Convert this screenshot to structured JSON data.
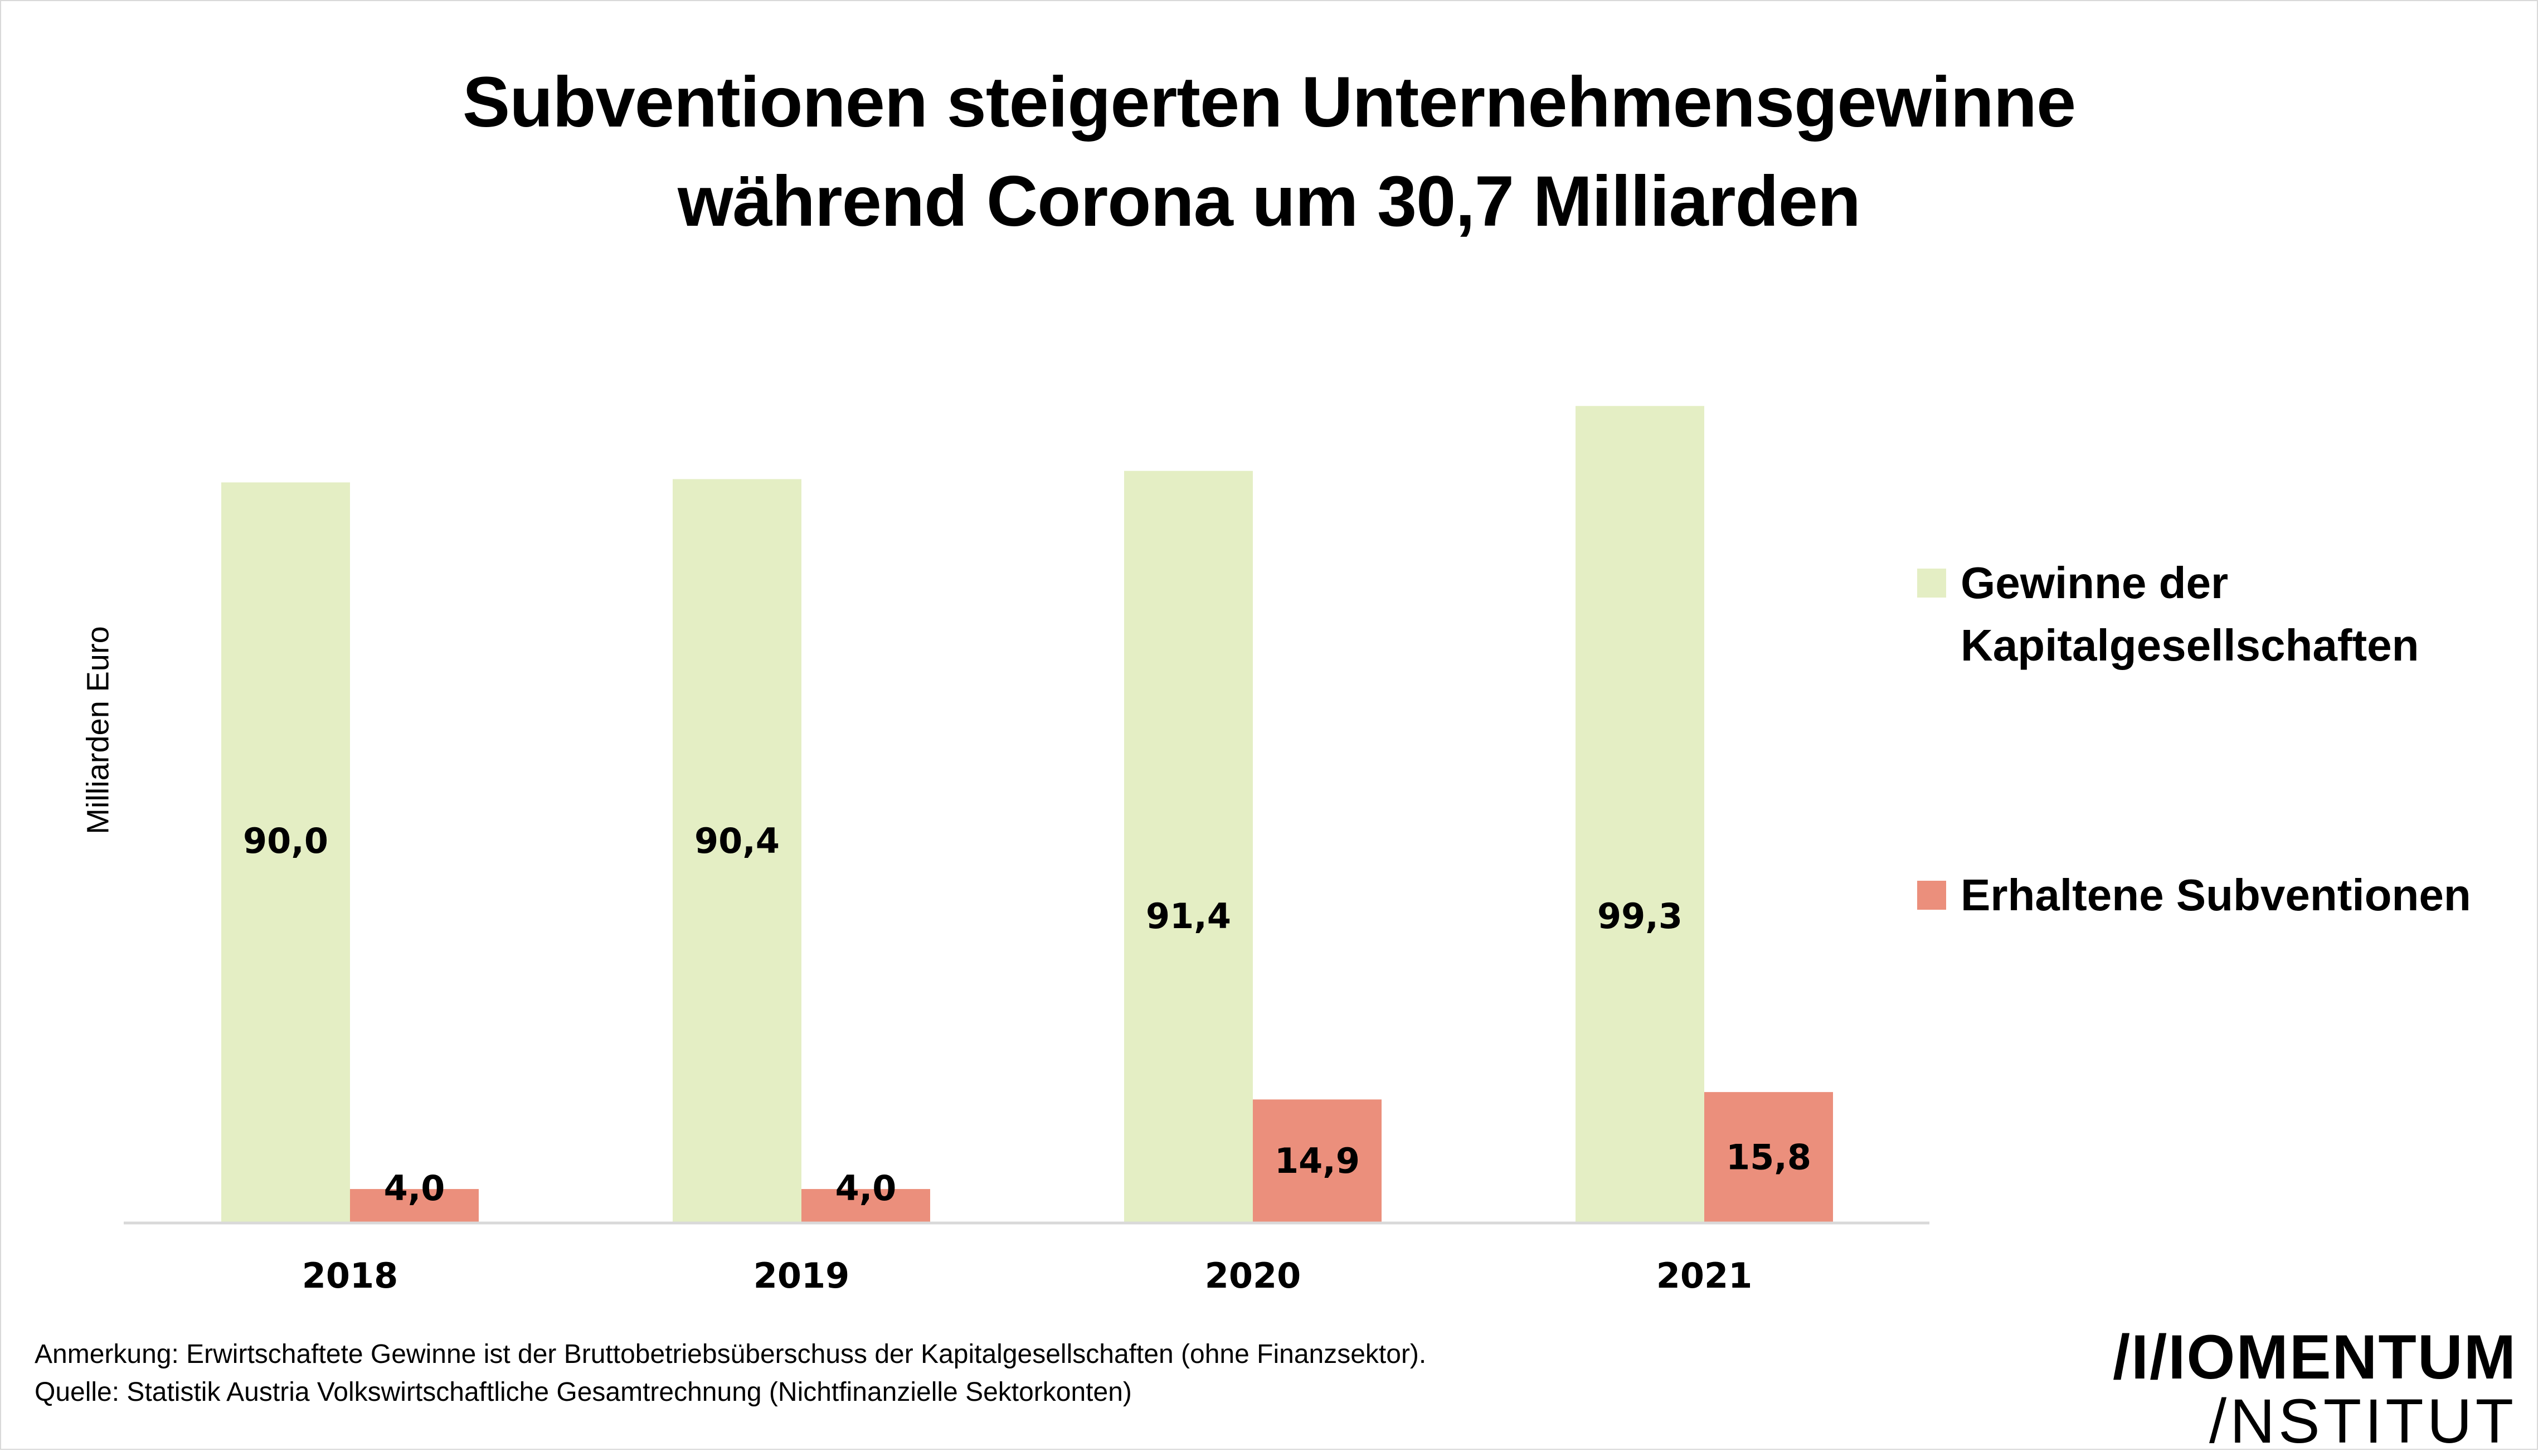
{
  "chart_data": {
    "type": "bar",
    "title": "Subventionen steigerten Unternehmensgewinne während Corona um 30,7 Milliarden",
    "title_lines": [
      "Subventionen steigerten Unternehmensgewinne",
      "während Corona um 30,7 Milliarden"
    ],
    "xlabel": "",
    "ylabel": "Milliarden Euro",
    "categories": [
      "2018",
      "2019",
      "2020",
      "2021"
    ],
    "series": [
      {
        "name": "Gewinne der Kapitalgesellschaften",
        "legend_lines": [
          "Gewinne der",
          "Kapitalgesellschaften"
        ],
        "color": "#e4eec4",
        "values": [
          90.0,
          90.4,
          91.4,
          99.3
        ],
        "labels": [
          "90,0",
          "90,4",
          "91,4",
          "99,3"
        ]
      },
      {
        "name": "Erhaltene Subventionen",
        "legend_lines": [
          "Erhaltene Subventionen"
        ],
        "color": "#eb8f7c",
        "values": [
          4.0,
          4.0,
          14.9,
          15.8
        ],
        "labels": [
          "4,0",
          "4,0",
          "14,9",
          "15,8"
        ]
      }
    ],
    "ylim": [
      0,
      110
    ],
    "grid": false,
    "y_ticks_shown": false,
    "legend_position": "right",
    "axis_color": "#d9d9d9"
  },
  "footer": {
    "note": "Anmerkung: Erwirtschaftete Gewinne ist der Bruttobetriebsüberschuss der Kapitalgesellschaften (ohne Finanzsektor).",
    "source": "Quelle: Statistik Austria Volkswirtschaftliche Gesamtrechnung (Nichtfinanzielle Sektorkonten)"
  },
  "logo": {
    "line1": "/I/IOMENTUM",
    "line2": "/NSTITUT"
  }
}
